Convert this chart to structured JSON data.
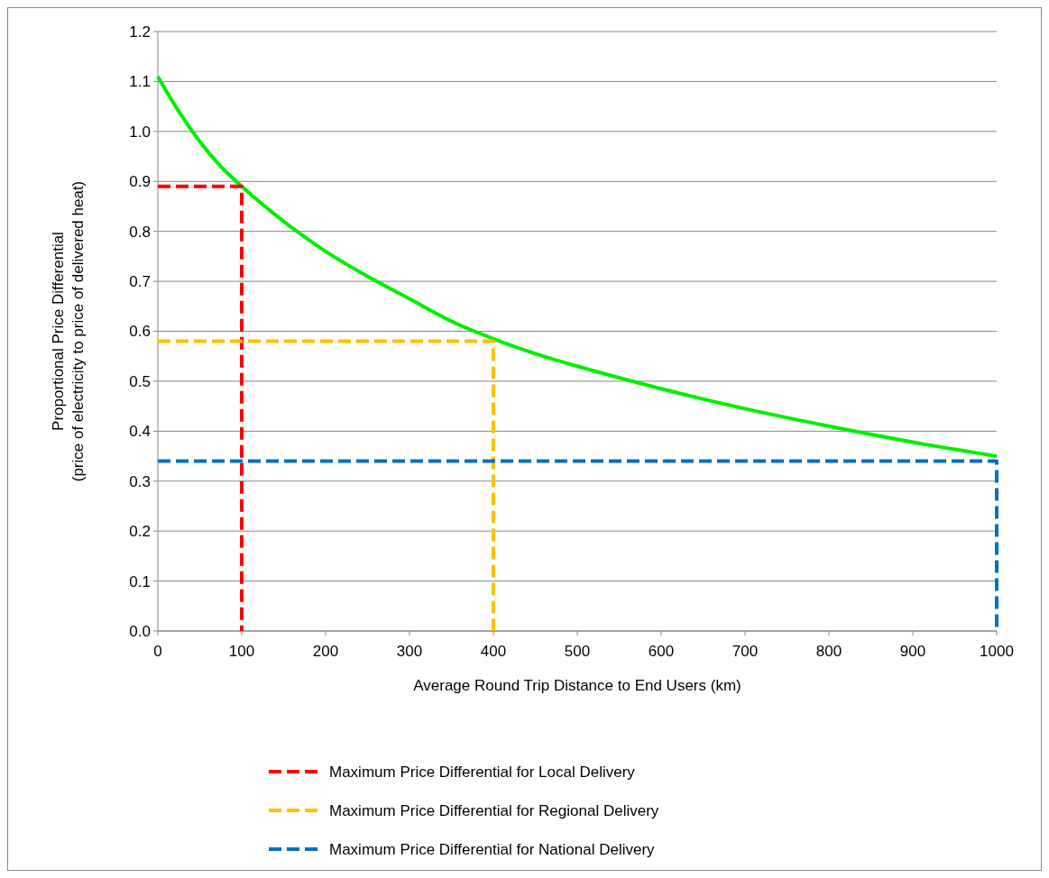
{
  "chart_data": {
    "type": "line",
    "xlabel": "Average Round Trip Distance to End Users (km)",
    "ylabel": "Proportional Price Differential\n(price of electricity  to price of delivered heat)",
    "xlim": [
      0,
      1000
    ],
    "ylim": [
      0,
      1.2
    ],
    "xticks": [
      0,
      100,
      200,
      300,
      400,
      500,
      600,
      700,
      800,
      900,
      1000
    ],
    "yticks": [
      {
        "value": 0,
        "label": "0.0"
      },
      {
        "value": 0.1,
        "label": "0.1"
      },
      {
        "value": 0.2,
        "label": "0.2"
      },
      {
        "value": 0.3,
        "label": "0.3"
      },
      {
        "value": 0.4,
        "label": "0.4"
      },
      {
        "value": 0.5,
        "label": "0.5"
      },
      {
        "value": 0.6,
        "label": "0.6"
      },
      {
        "value": 0.7,
        "label": "0.7"
      },
      {
        "value": 0.8,
        "label": "0.8"
      },
      {
        "value": 0.9,
        "label": "0.9"
      },
      {
        "value": 1.0,
        "label": "1.0"
      },
      {
        "value": 1.1,
        "label": "1.1"
      },
      {
        "value": 1.2,
        "label": "1.2"
      }
    ],
    "grid": "y",
    "legend": "bottom",
    "marker": "none",
    "series": [
      {
        "color": "#00ee00",
        "line_style": "solid",
        "x": [
          0,
          25,
          50,
          75,
          100,
          150,
          200,
          250,
          300,
          350,
          400,
          450,
          500,
          600,
          700,
          800,
          900,
          1000
        ],
        "values": [
          1.11,
          1.04,
          0.98,
          0.93,
          0.89,
          0.82,
          0.76,
          0.71,
          0.665,
          0.62,
          0.585,
          0.555,
          0.53,
          0.485,
          0.445,
          0.41,
          0.378,
          0.35
        ]
      },
      {
        "name": "Maximum Price Differential for Local Delivery",
        "color": "#ff0000",
        "line_style": "dashed",
        "x": [
          0,
          100,
          100
        ],
        "values": [
          0.89,
          0.89,
          0
        ]
      },
      {
        "name": "Maximum Price Differential for Regional Delivery",
        "color": "#ffc000",
        "line_style": "dashed",
        "x": [
          0,
          400,
          400
        ],
        "values": [
          0.58,
          0.58,
          0
        ]
      },
      {
        "name": "Maximum Price Differential for National Delivery",
        "color": "#0070c0",
        "line_style": "dashed",
        "x": [
          0,
          1000,
          1000
        ],
        "values": [
          0.34,
          0.34,
          0
        ]
      }
    ]
  }
}
